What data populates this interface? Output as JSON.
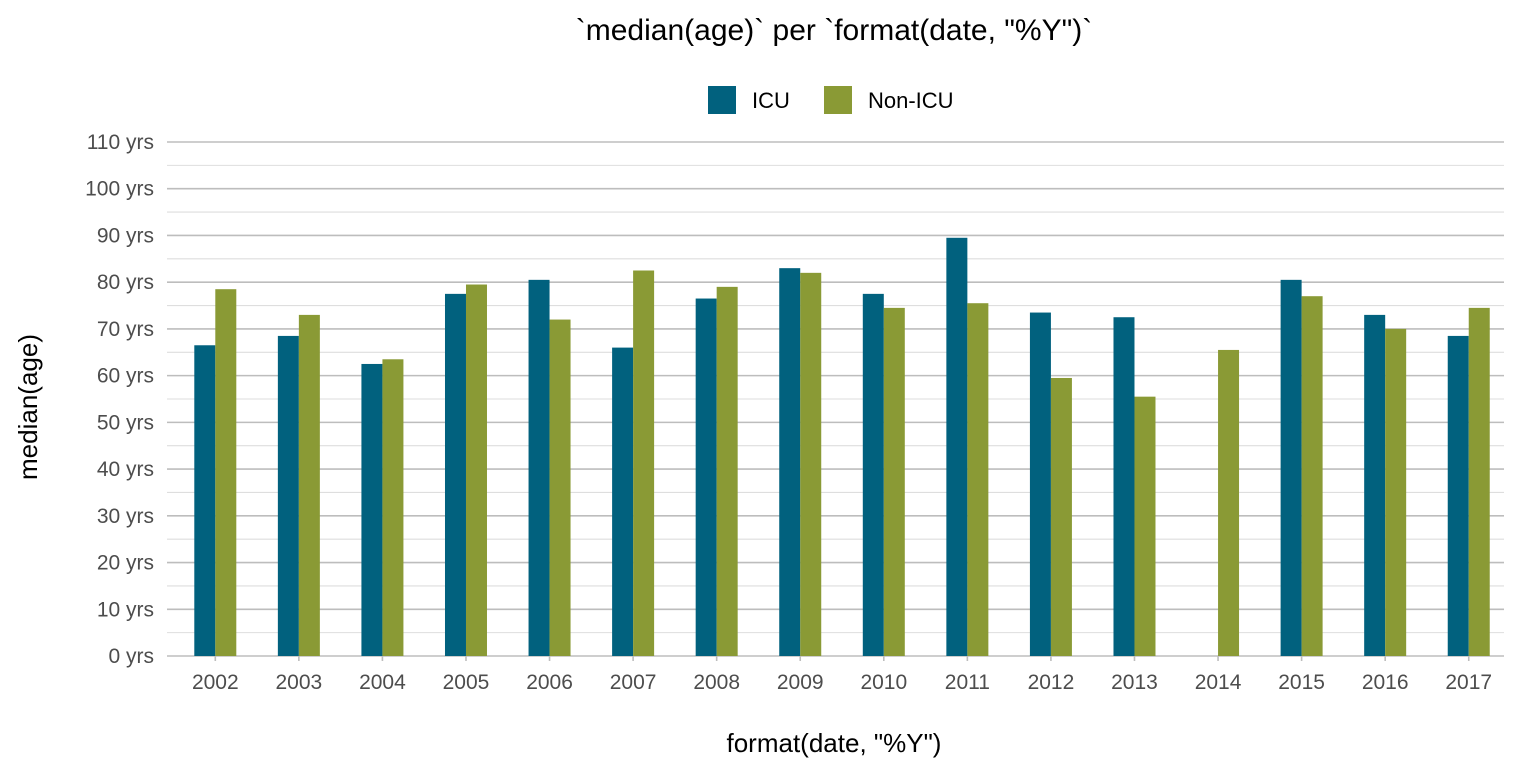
{
  "chart_data": {
    "type": "bar",
    "title": "`median(age)` per `format(date, \"%Y\")`",
    "xlabel": "format(date, \"%Y\")",
    "ylabel": "median(age)",
    "categories": [
      "2002",
      "2003",
      "2004",
      "2005",
      "2006",
      "2007",
      "2008",
      "2009",
      "2010",
      "2011",
      "2012",
      "2013",
      "2014",
      "2015",
      "2016",
      "2017"
    ],
    "series": [
      {
        "name": "ICU",
        "color": "#01617e",
        "values": [
          66.5,
          68.5,
          62.5,
          77.5,
          80.5,
          66,
          76.5,
          83,
          77.5,
          89.5,
          73.5,
          72.5,
          null,
          80.5,
          73,
          68.5
        ]
      },
      {
        "name": "Non-ICU",
        "color": "#8a9a35",
        "values": [
          78.5,
          73,
          63.5,
          79.5,
          72,
          82.5,
          79,
          82,
          74.5,
          75.5,
          59.5,
          55.5,
          65.5,
          77,
          70,
          74.5
        ]
      }
    ],
    "ylim": [
      0,
      110
    ],
    "yticks": [
      0,
      10,
      20,
      30,
      40,
      50,
      60,
      70,
      80,
      90,
      100,
      110
    ],
    "ytick_labels": [
      "0 yrs",
      "10 yrs",
      "20 yrs",
      "30 yrs",
      "40 yrs",
      "50 yrs",
      "60 yrs",
      "70 yrs",
      "80 yrs",
      "90 yrs",
      "100 yrs",
      "110 yrs"
    ],
    "grid": true,
    "legend_position": "top-center"
  }
}
